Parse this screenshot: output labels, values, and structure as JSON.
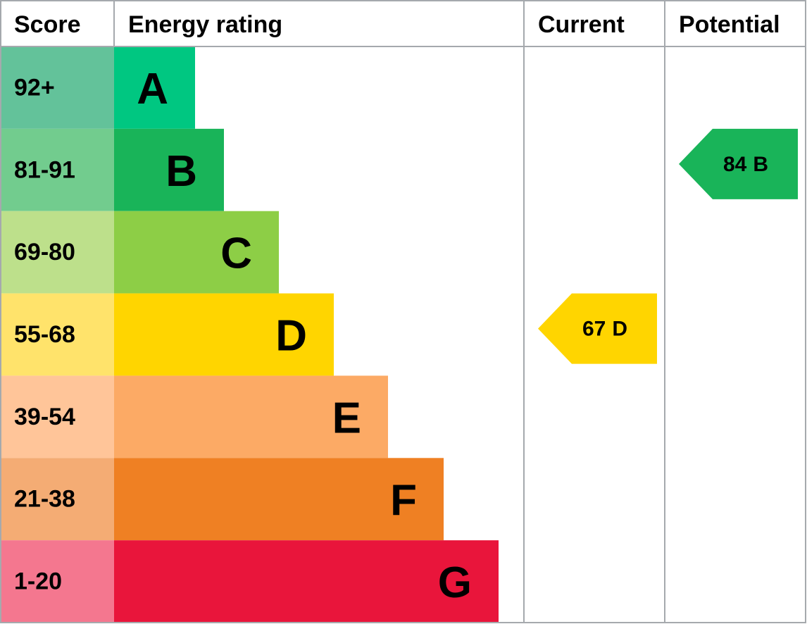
{
  "header": {
    "score": "Score",
    "rating": "Energy rating",
    "current": "Current",
    "potential": "Potential"
  },
  "rows": [
    {
      "score": "92+",
      "band": "A",
      "color": "#00c781",
      "score_color": "#63c29a"
    },
    {
      "score": "81-91",
      "band": "B",
      "color": "#19b459",
      "score_color": "#72cc8e"
    },
    {
      "score": "69-80",
      "band": "C",
      "color": "#8dce46",
      "score_color": "#bde08b"
    },
    {
      "score": "55-68",
      "band": "D",
      "color": "#ffd500",
      "score_color": "#ffe36b"
    },
    {
      "score": "39-54",
      "band": "E",
      "color": "#fcaa65",
      "score_color": "#ffc599"
    },
    {
      "score": "21-38",
      "band": "F",
      "color": "#ef8023",
      "score_color": "#f4ac74"
    },
    {
      "score": "1-20",
      "band": "G",
      "color": "#e9153b",
      "score_color": "#f4778f"
    }
  ],
  "current": {
    "value": 67,
    "band": "D"
  },
  "potential": {
    "value": 84,
    "band": "B"
  }
}
